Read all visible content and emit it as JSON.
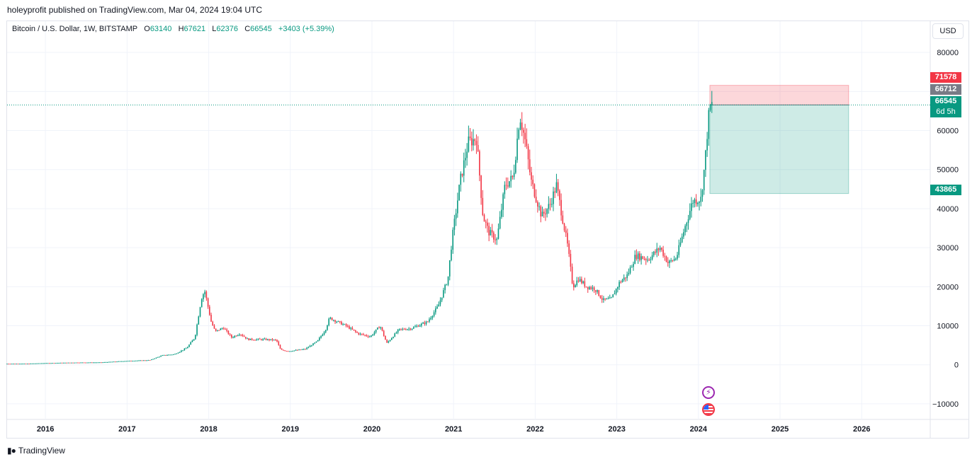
{
  "header": {
    "published": "holeyprofit published on TradingView.com, Mar 04, 2024 19:04 UTC"
  },
  "legend": {
    "symbol": "Bitcoin / U.S. Dollar, 1W, BITSTAMP",
    "o_label": "O",
    "o": "63140",
    "h_label": "H",
    "h": "67621",
    "l_label": "L",
    "l": "62376",
    "c_label": "C",
    "c": "66545",
    "change": "+3403 (+5.39%)"
  },
  "currency": "USD",
  "badges": {
    "target": "71578",
    "gray": "66712",
    "last": "66545",
    "countdown": "6d 5h",
    "stop": "43865"
  },
  "colors": {
    "up": "#089981",
    "down": "#f23645",
    "grid": "#f0f3fa",
    "target": "#f23645",
    "gray": "#787b86"
  },
  "footer": {
    "brand": "TradingView"
  },
  "chart_data": {
    "type": "candlestick",
    "title": "",
    "xlabel": "",
    "ylabel": "",
    "ylim": [
      -14000,
      88000
    ],
    "y_ticks": [
      80000,
      60000,
      50000,
      40000,
      30000,
      20000,
      10000,
      0,
      -10000
    ],
    "y_tick_labels": [
      "80000",
      "60000",
      "50000",
      "40000",
      "30000",
      "20000",
      "10000",
      "0",
      "−10000"
    ],
    "x_range": [
      2015.53,
      2026.84
    ],
    "x_ticks": [
      2016,
      2017,
      2018,
      2019,
      2020,
      2021,
      2022,
      2023,
      2024,
      2025,
      2026
    ],
    "x_tick_labels": [
      "2016",
      "2017",
      "2018",
      "2019",
      "2020",
      "2021",
      "2022",
      "2023",
      "2024",
      "2025",
      "2026"
    ],
    "grid": true,
    "last_price": 66545,
    "position": {
      "entry": 66545,
      "target": 71578,
      "stop": 43865,
      "x_start": 2024.14,
      "x_end": 2025.84
    },
    "price_path": [
      [
        2015.53,
        280
      ],
      [
        2015.8,
        300
      ],
      [
        2016.0,
        430
      ],
      [
        2016.4,
        580
      ],
      [
        2016.7,
        620
      ],
      [
        2017.0,
        980
      ],
      [
        2017.3,
        1200
      ],
      [
        2017.45,
        2400
      ],
      [
        2017.6,
        2700
      ],
      [
        2017.75,
        4300
      ],
      [
        2017.85,
        7000
      ],
      [
        2017.93,
        17000
      ],
      [
        2017.97,
        19000
      ],
      [
        2018.05,
        11000
      ],
      [
        2018.1,
        8500
      ],
      [
        2018.2,
        9500
      ],
      [
        2018.3,
        7000
      ],
      [
        2018.4,
        8000
      ],
      [
        2018.5,
        6500
      ],
      [
        2018.7,
        6500
      ],
      [
        2018.85,
        6300
      ],
      [
        2018.9,
        3800
      ],
      [
        2019.0,
        3500
      ],
      [
        2019.2,
        4000
      ],
      [
        2019.35,
        6000
      ],
      [
        2019.45,
        9000
      ],
      [
        2019.5,
        12000
      ],
      [
        2019.7,
        10000
      ],
      [
        2019.85,
        8000
      ],
      [
        2020.0,
        7200
      ],
      [
        2020.12,
        10000
      ],
      [
        2020.2,
        5500
      ],
      [
        2020.35,
        9000
      ],
      [
        2020.5,
        9300
      ],
      [
        2020.7,
        11000
      ],
      [
        2020.83,
        15000
      ],
      [
        2020.95,
        22000
      ],
      [
        2021.0,
        32000
      ],
      [
        2021.1,
        47000
      ],
      [
        2021.2,
        57000
      ],
      [
        2021.3,
        58000
      ],
      [
        2021.38,
        38000
      ],
      [
        2021.45,
        34000
      ],
      [
        2021.55,
        32000
      ],
      [
        2021.65,
        46000
      ],
      [
        2021.75,
        48000
      ],
      [
        2021.83,
        64000
      ],
      [
        2021.9,
        57000
      ],
      [
        2021.97,
        47000
      ],
      [
        2022.1,
        38000
      ],
      [
        2022.2,
        41000
      ],
      [
        2022.28,
        46000
      ],
      [
        2022.35,
        38000
      ],
      [
        2022.42,
        30000
      ],
      [
        2022.48,
        20000
      ],
      [
        2022.55,
        22000
      ],
      [
        2022.65,
        20000
      ],
      [
        2022.75,
        19500
      ],
      [
        2022.85,
        16500
      ],
      [
        2022.95,
        16800
      ],
      [
        2023.05,
        21000
      ],
      [
        2023.15,
        23000
      ],
      [
        2023.25,
        28000
      ],
      [
        2023.4,
        27000
      ],
      [
        2023.55,
        30000
      ],
      [
        2023.65,
        26000
      ],
      [
        2023.75,
        27500
      ],
      [
        2023.85,
        35000
      ],
      [
        2023.95,
        42000
      ],
      [
        2024.05,
        42500
      ],
      [
        2024.1,
        52000
      ],
      [
        2024.14,
        63000
      ],
      [
        2024.17,
        66545
      ]
    ]
  }
}
